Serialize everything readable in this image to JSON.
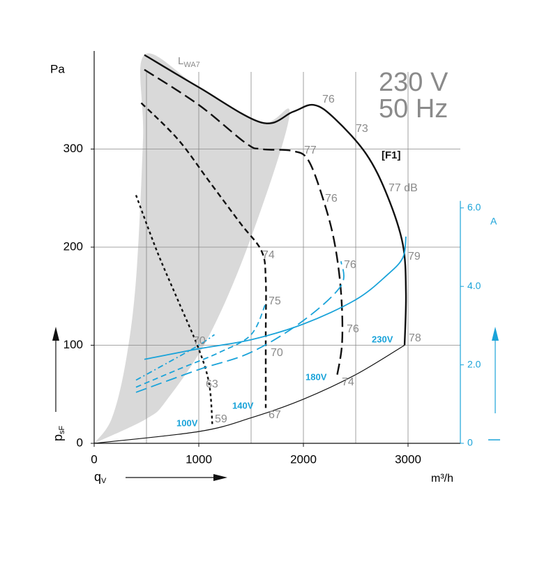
{
  "chart_data": {
    "type": "line",
    "big_label": [
      "230 V",
      "50 Hz"
    ],
    "y_unit": "Pa",
    "y_label": {
      "main": "p",
      "sub": "sF"
    },
    "x_label": {
      "main": "q",
      "sub": "V"
    },
    "x_unit": "m³/h",
    "y2_unit": "A",
    "curve_label": {
      "main": "L",
      "sub": "WA7"
    },
    "annotations": [
      "76",
      "73",
      "77",
      "77 dB",
      "76",
      "74",
      "76",
      "79",
      "75",
      "70",
      "70",
      "76",
      "78",
      "74",
      "63",
      "67",
      "59",
      "[F1]"
    ],
    "xlim": [
      0,
      3500
    ],
    "ylim": [
      0,
      400
    ],
    "y2lim": [
      0,
      10
    ],
    "xticks": [
      0,
      1000,
      2000,
      3000
    ],
    "yticks": [
      0,
      100,
      200,
      300
    ],
    "y2ticks": [
      0,
      {
        "value": 2,
        "label": "2.0"
      },
      {
        "value": 4,
        "label": "4.0"
      },
      {
        "value": 6,
        "label": "6.0"
      }
    ],
    "x_grid": [
      500,
      1000,
      1500,
      2000,
      2500,
      3000
    ],
    "y_grid": [
      100,
      200,
      300
    ],
    "grid": true,
    "region": {
      "color": "#d9d9d9",
      "x": [
        0,
        167,
        300,
        400,
        467,
        480,
        1000,
        1600,
        1867,
        1500,
        1100,
        700,
        500,
        0
      ],
      "values": [
        0,
        25,
        82,
        167,
        310,
        396,
        363,
        327,
        335,
        210,
        110,
        45,
        25,
        0
      ]
    },
    "series": [
      {
        "color": "#111111",
        "dash": "solid",
        "width": 2.4,
        "x": [
          480,
          1000,
          1600,
          1900,
          2100,
          2300,
          2600,
          2800,
          2950,
          2980,
          2967
        ],
        "values": [
          396,
          363,
          327,
          338,
          345,
          331,
          295,
          253,
          203,
          153,
          100
        ]
      },
      {
        "color": "#111111",
        "dash": "solid",
        "width": 1.2,
        "x": [
          0,
          1000,
          1500,
          2000,
          2500,
          2967
        ],
        "values": [
          0,
          12,
          26,
          45,
          70,
          100
        ]
      },
      {
        "color": "#111111",
        "dash": "long",
        "width": 2.4,
        "x": [
          480,
          1000,
          1450,
          1600,
          1900,
          2050,
          2200,
          2300,
          2360,
          2370,
          2320
        ],
        "values": [
          381,
          345,
          306,
          300,
          298,
          288,
          245,
          203,
          153,
          103,
          68
        ]
      },
      {
        "color": "#111111",
        "dash": "medium",
        "width": 2.4,
        "x": [
          450,
          800,
          1100,
          1400,
          1600,
          1640,
          1640,
          1640
        ],
        "values": [
          347,
          310,
          267,
          224,
          196,
          167,
          110,
          36
        ]
      },
      {
        "color": "#111111",
        "dash": "dot",
        "width": 2.4,
        "x": [
          400,
          600,
          800,
          1000,
          1100,
          1130
        ],
        "values": [
          253,
          196,
          146,
          96,
          60,
          18
        ]
      },
      {
        "name": "230V",
        "color": "#1aa3d9",
        "dash": "solid",
        "width": 1.8,
        "axis": "y2",
        "x": [
          480,
          1000,
          1500,
          2000,
          2500,
          2800,
          2950,
          2980
        ],
        "values": [
          2.14,
          2.41,
          2.64,
          3.04,
          3.66,
          4.29,
          4.73,
          5.27
        ]
      },
      {
        "name": "180V",
        "color": "#1aa3d9",
        "dash": "long",
        "width": 1.8,
        "axis": "y2",
        "x": [
          400,
          1000,
          1500,
          2000,
          2360,
          2360
        ],
        "values": [
          1.3,
          1.88,
          2.32,
          3.13,
          4.02,
          4.64
        ]
      },
      {
        "name": "140V",
        "color": "#1aa3d9",
        "dash": "medium",
        "width": 1.8,
        "axis": "y2",
        "x": [
          400,
          800,
          1200,
          1500,
          1640
        ],
        "values": [
          1.43,
          1.88,
          2.32,
          2.77,
          3.57
        ]
      },
      {
        "name": "100V",
        "color": "#1aa3d9",
        "dash": "dotdash",
        "width": 1.8,
        "axis": "y2",
        "x": [
          400,
          700,
          1000,
          1150
        ],
        "values": [
          1.61,
          2.05,
          2.5,
          2.77
        ]
      }
    ]
  }
}
